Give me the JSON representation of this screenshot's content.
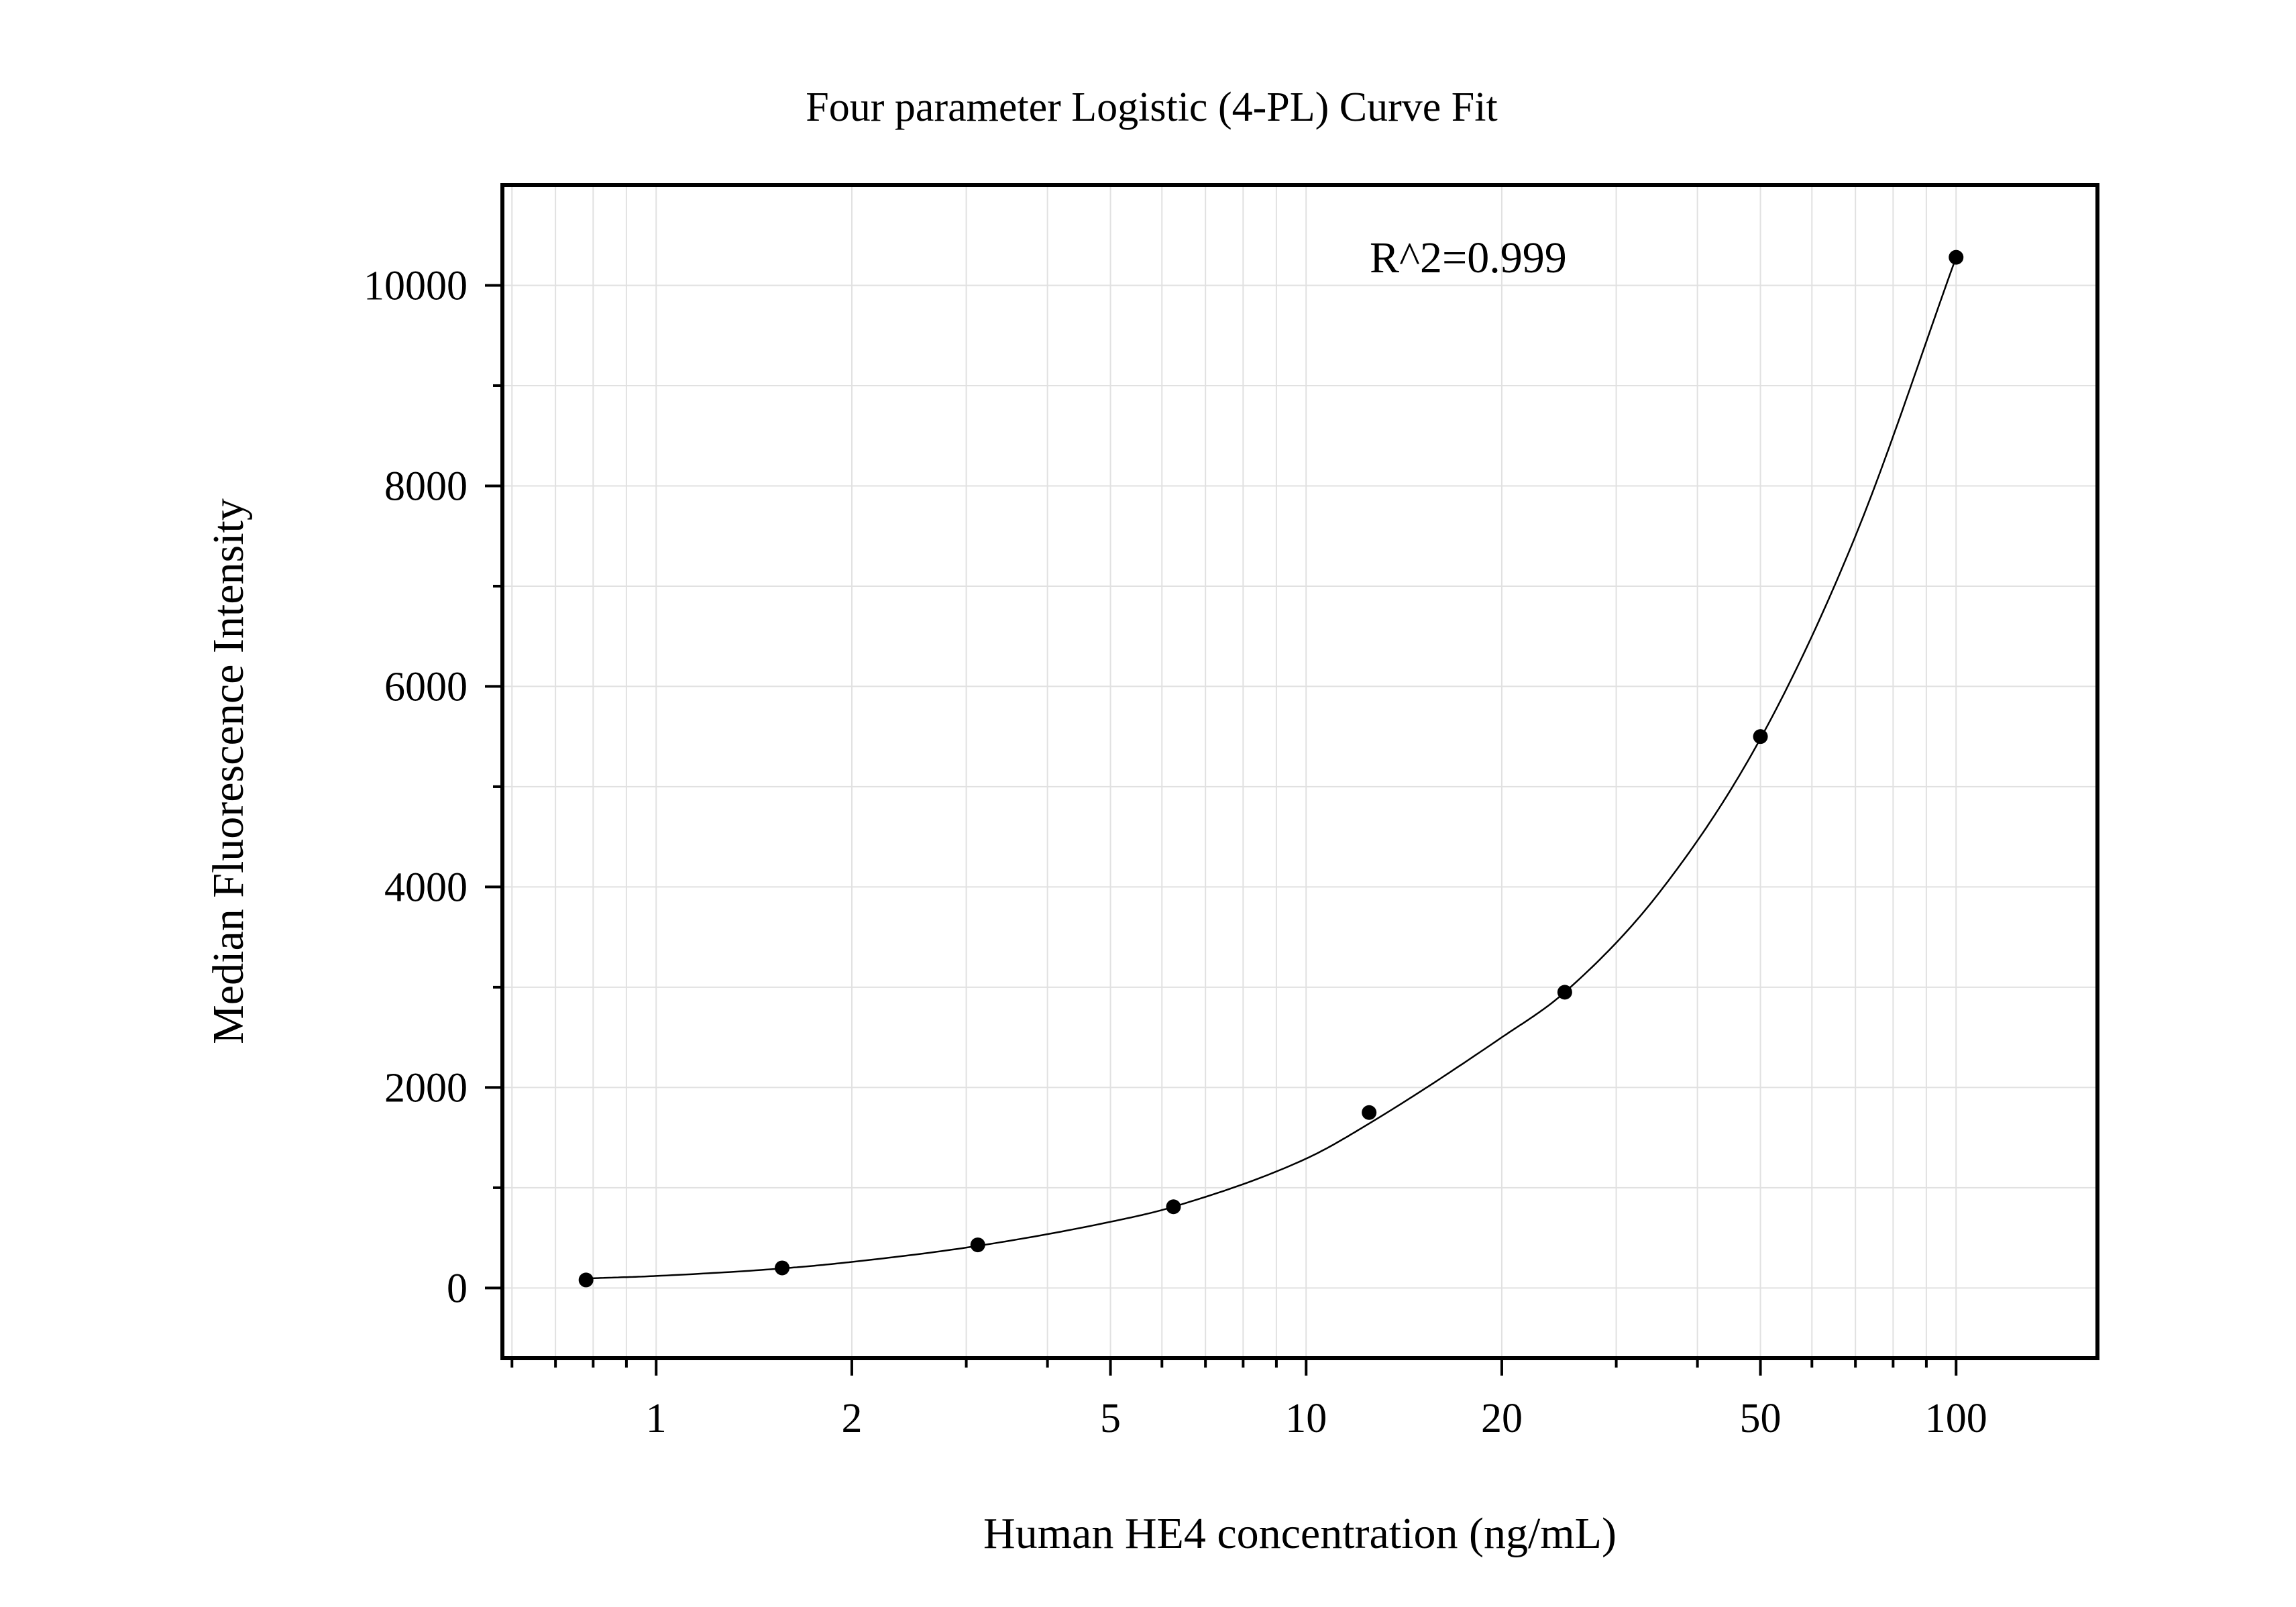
{
  "chart_data": {
    "type": "scatter",
    "title": "Four parameter Logistic (4-PL) Curve Fit",
    "xlabel": "Human HE4 concentration (ng/mL)",
    "ylabel": "Median Fluorescence Intensity",
    "x_scale": "log",
    "xlim": [
      0.58,
      165
    ],
    "ylim": [
      -700,
      11000
    ],
    "x_ticks": [
      1,
      2,
      5,
      10,
      20,
      50,
      100
    ],
    "x_tick_labels": [
      "1",
      "2",
      "5",
      "10",
      "20",
      "50",
      "100"
    ],
    "y_ticks": [
      0,
      2000,
      4000,
      6000,
      8000,
      10000
    ],
    "y_tick_labels": [
      "0",
      "2000",
      "4000",
      "6000",
      "8000",
      "10000"
    ],
    "y_minor_ticks": [
      1000,
      3000,
      5000,
      7000,
      9000
    ],
    "grid": true,
    "annotation": "R^2=0.999",
    "series": [
      {
        "x": [
          0.78,
          1.5625,
          3.125,
          6.25,
          12.5,
          25,
          50,
          100
        ],
        "y": [
          80,
          200,
          430,
          810,
          1750,
          2950,
          5500,
          10280
        ]
      }
    ],
    "fit_curve": {
      "x": [
        0.78,
        1,
        1.5625,
        2,
        3.125,
        5,
        6.25,
        10,
        12.5,
        20,
        25,
        35,
        50,
        70,
        100
      ],
      "y": [
        95,
        120,
        195,
        260,
        420,
        660,
        810,
        1290,
        1640,
        2500,
        2950,
        3950,
        5480,
        7500,
        10280
      ]
    },
    "colors": {
      "background": "#ffffff",
      "axis": "#000000",
      "grid": "#e1e1e1",
      "marker": "#000000",
      "curve": "#000000"
    }
  }
}
